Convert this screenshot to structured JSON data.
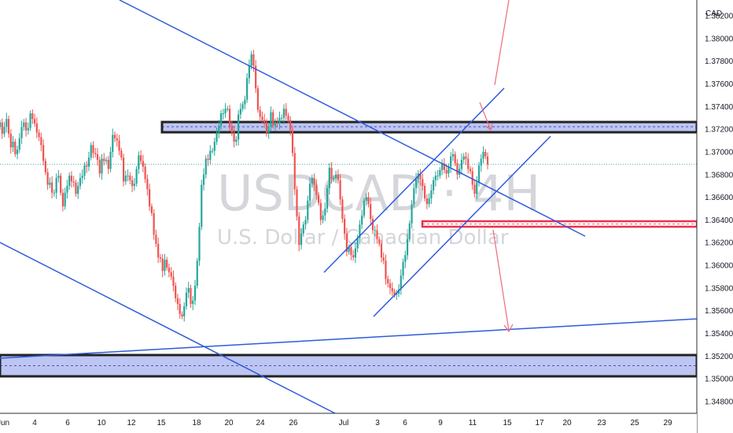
{
  "chart_data": {
    "type": "candlestick",
    "symbol": "USDCAD · 4H",
    "description": "U.S. Dollar / Canadian Dollar",
    "currency": "CAD",
    "ylim": [
      1.3466,
      1.3868
    ],
    "y_ticks": [
      "1.38200",
      "1.38000",
      "1.37800",
      "1.37600",
      "1.37400",
      "1.37200",
      "1.37000",
      "1.36800",
      "1.36600",
      "1.36400",
      "1.36200",
      "1.36000",
      "1.35800",
      "1.35600",
      "1.35400",
      "1.35200",
      "1.35000",
      "1.34800"
    ],
    "x_ticks": [
      "Jun",
      "4",
      "6",
      "10",
      "12",
      "15",
      "18",
      "20",
      "24",
      "26",
      "Jul",
      "3",
      "6",
      "9",
      "11",
      "15",
      "17",
      "20",
      "23",
      "25",
      "29"
    ],
    "last_price": 1.3689,
    "series_color_up": "#26a69a",
    "series_color_down": "#ef5350",
    "closes": [
      1.3726,
      1.3716,
      1.3722,
      1.3729,
      1.3716,
      1.3704,
      1.3709,
      1.3698,
      1.3702,
      1.3712,
      1.3722,
      1.3726,
      1.3719,
      1.3721,
      1.3734,
      1.3729,
      1.3725,
      1.3717,
      1.3713,
      1.3706,
      1.3692,
      1.3682,
      1.3671,
      1.3673,
      1.3664,
      1.3664,
      1.3677,
      1.3679,
      1.3664,
      1.3652,
      1.3664,
      1.367,
      1.3679,
      1.3674,
      1.3673,
      1.3663,
      1.367,
      1.3677,
      1.3679,
      1.3688,
      1.3687,
      1.3695,
      1.3706,
      1.3699,
      1.3698,
      1.3693,
      1.3681,
      1.3694,
      1.3692,
      1.3693,
      1.3685,
      1.37,
      1.3715,
      1.3712,
      1.371,
      1.3701,
      1.3695,
      1.3674,
      1.3679,
      1.3679,
      1.3675,
      1.367,
      1.3672,
      1.3685,
      1.3697,
      1.3692,
      1.3687,
      1.3676,
      1.3667,
      1.3652,
      1.3646,
      1.3627,
      1.3619,
      1.3607,
      1.3606,
      1.3595,
      1.3605,
      1.3598,
      1.3594,
      1.359,
      1.3582,
      1.3571,
      1.3566,
      1.3557,
      1.3555,
      1.3564,
      1.3576,
      1.358,
      1.3566,
      1.3569,
      1.3582,
      1.3604,
      1.3634,
      1.3671,
      1.368,
      1.3694,
      1.3693,
      1.3701,
      1.3701,
      1.3709,
      1.3717,
      1.3723,
      1.3734,
      1.3734,
      1.3738,
      1.3738,
      1.3723,
      1.3717,
      1.3709,
      1.3711,
      1.3733,
      1.3738,
      1.3742,
      1.3746,
      1.3765,
      1.3776,
      1.3786,
      1.3776,
      1.3756,
      1.3737,
      1.3731,
      1.3728,
      1.3726,
      1.3717,
      1.3722,
      1.3735,
      1.3723,
      1.3726,
      1.3725,
      1.373,
      1.373,
      1.3738,
      1.3732,
      1.3728,
      1.3719,
      1.3699,
      1.3667,
      1.3643,
      1.3618,
      1.3628,
      1.3636,
      1.364,
      1.3657,
      1.3672,
      1.3677,
      1.3671,
      1.3662,
      1.3655,
      1.364,
      1.3644,
      1.365,
      1.3668,
      1.3686,
      1.3676,
      1.3677,
      1.368,
      1.3675,
      1.3658,
      1.3641,
      1.3628,
      1.3612,
      1.3616,
      1.3609,
      1.3607,
      1.3615,
      1.3624,
      1.3636,
      1.3644,
      1.3657,
      1.366,
      1.3654,
      1.3641,
      1.3631,
      1.3631,
      1.3623,
      1.3619,
      1.3607,
      1.3604,
      1.3588,
      1.3584,
      1.358,
      1.3577,
      1.3574,
      1.3575,
      1.3579,
      1.3591,
      1.3603,
      1.3609,
      1.3623,
      1.3637,
      1.3654,
      1.3668,
      1.3676,
      1.3681,
      1.3676,
      1.367,
      1.3659,
      1.3654,
      1.3659,
      1.3666,
      1.3675,
      1.3679,
      1.3679,
      1.3684,
      1.369,
      1.3684,
      1.3681,
      1.3687,
      1.3696,
      1.3698,
      1.369,
      1.368,
      1.3685,
      1.3693,
      1.3696,
      1.3694,
      1.3685,
      1.3683,
      1.3671,
      1.3663,
      1.3673,
      1.3688,
      1.3694,
      1.37,
      1.3696,
      1.3689
    ]
  }
}
